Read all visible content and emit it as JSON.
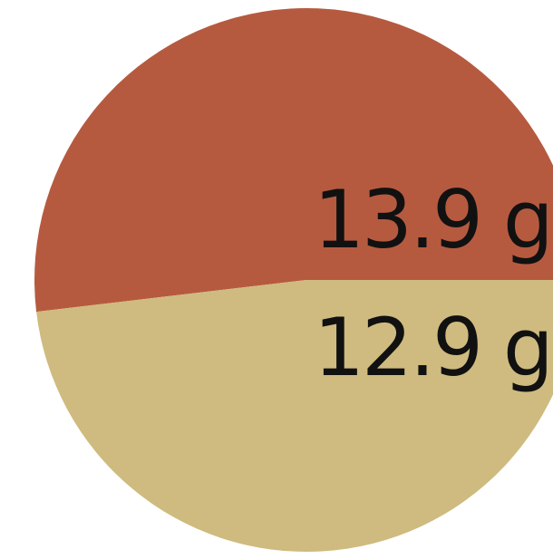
{
  "chart_data": {
    "type": "pie",
    "title": "",
    "slices": [
      {
        "label": "13.9 g",
        "value": 13.9,
        "color": "#b65a3f"
      },
      {
        "label": "12.9 g",
        "value": 12.9,
        "color": "#cfbb7f"
      }
    ],
    "legend": "none"
  }
}
